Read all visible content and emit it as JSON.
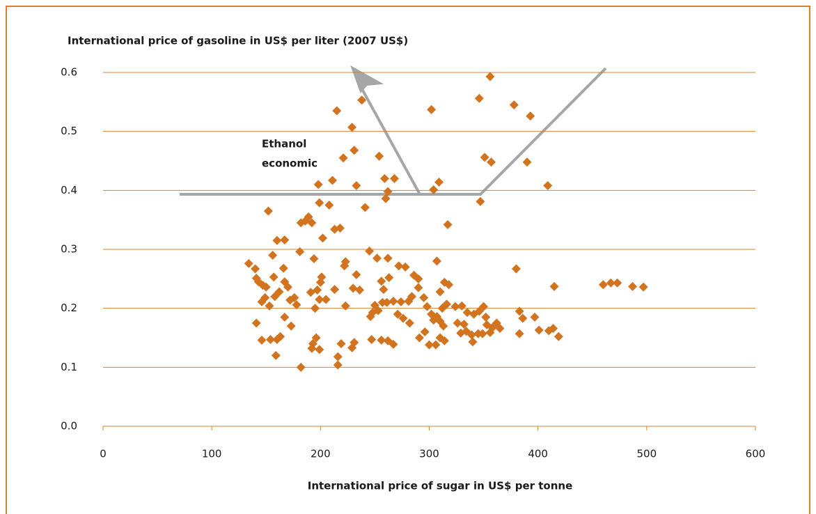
{
  "chart_data": {
    "type": "scatter",
    "y_axis_label": "International price of gasoline in US$ per liter (2007 US$)",
    "x_axis_label": "International price of sugar in US$ per tonne",
    "annotation_lines": [
      "Ethanol",
      "economic"
    ],
    "color": "#d2731f",
    "grid": true,
    "xlim": [
      0,
      600
    ],
    "xticks": [
      0,
      100,
      200,
      300,
      400,
      500,
      600
    ],
    "ylim": [
      0,
      0.6
    ],
    "yticks": [
      {
        "value": 0,
        "label": "0.0"
      },
      0.1,
      0.2,
      0.3,
      0.4,
      0.5,
      0.6
    ],
    "x": [
      215,
      238,
      229,
      231,
      221,
      233,
      211,
      198,
      208,
      199,
      152,
      254,
      259,
      262,
      260,
      268,
      241,
      302,
      346,
      356,
      378,
      393,
      351,
      357,
      390,
      409,
      309,
      304,
      347,
      317,
      218,
      213,
      202,
      182,
      186,
      189,
      192,
      160,
      167,
      156,
      181,
      194,
      307,
      380,
      134,
      140,
      141,
      143,
      147,
      150,
      146,
      149,
      153,
      158,
      157,
      162,
      166,
      167,
      170,
      172,
      176,
      178,
      173,
      167,
      191,
      197,
      199,
      195,
      200,
      201,
      205,
      213,
      223,
      222,
      233,
      236,
      230,
      223,
      245,
      252,
      256,
      258,
      250,
      253,
      262,
      263,
      267,
      261,
      257,
      246,
      248,
      272,
      278,
      286,
      290,
      284,
      274,
      281,
      295,
      290,
      298,
      302,
      304,
      307,
      310,
      312,
      314,
      318,
      316,
      310,
      313,
      324,
      330,
      332,
      335,
      341,
      346,
      350,
      352,
      353,
      358,
      362,
      365,
      339,
      334,
      326,
      329,
      345,
      349,
      356,
      340,
      310,
      314,
      306,
      300,
      291,
      296,
      276,
      282,
      271,
      256,
      247,
      262,
      267,
      229,
      231,
      219,
      216,
      216,
      182,
      193,
      196,
      199,
      192,
      146,
      154,
      160,
      163,
      159,
      141,
      383,
      386,
      397,
      401,
      383,
      410,
      414,
      419,
      415,
      460,
      467,
      473,
      487,
      497
    ],
    "values": [
      0.535,
      0.553,
      0.507,
      0.468,
      0.455,
      0.408,
      0.417,
      0.41,
      0.375,
      0.379,
      0.365,
      0.458,
      0.42,
      0.398,
      0.386,
      0.42,
      0.371,
      0.537,
      0.556,
      0.593,
      0.545,
      0.526,
      0.456,
      0.448,
      0.448,
      0.408,
      0.414,
      0.401,
      0.381,
      0.342,
      0.336,
      0.334,
      0.319,
      0.345,
      0.348,
      0.355,
      0.345,
      0.315,
      0.316,
      0.29,
      0.296,
      0.284,
      0.28,
      0.267,
      0.276,
      0.267,
      0.251,
      0.245,
      0.239,
      0.236,
      0.211,
      0.218,
      0.204,
      0.22,
      0.253,
      0.228,
      0.268,
      0.245,
      0.236,
      0.214,
      0.218,
      0.206,
      0.17,
      0.185,
      0.227,
      0.231,
      0.215,
      0.2,
      0.244,
      0.253,
      0.215,
      0.232,
      0.279,
      0.272,
      0.257,
      0.231,
      0.234,
      0.204,
      0.297,
      0.285,
      0.246,
      0.232,
      0.205,
      0.196,
      0.285,
      0.252,
      0.212,
      0.21,
      0.21,
      0.186,
      0.193,
      0.272,
      0.27,
      0.256,
      0.235,
      0.22,
      0.211,
      0.212,
      0.218,
      0.25,
      0.203,
      0.19,
      0.18,
      0.186,
      0.178,
      0.2,
      0.244,
      0.24,
      0.207,
      0.228,
      0.17,
      0.203,
      0.204,
      0.173,
      0.193,
      0.19,
      0.195,
      0.203,
      0.185,
      0.172,
      0.167,
      0.175,
      0.166,
      0.155,
      0.161,
      0.175,
      0.158,
      0.157,
      0.157,
      0.159,
      0.143,
      0.15,
      0.145,
      0.138,
      0.138,
      0.15,
      0.16,
      0.183,
      0.175,
      0.19,
      0.146,
      0.147,
      0.145,
      0.139,
      0.133,
      0.142,
      0.14,
      0.118,
      0.104,
      0.1,
      0.14,
      0.15,
      0.13,
      0.132,
      0.146,
      0.147,
      0.147,
      0.152,
      0.12,
      0.175,
      0.195,
      0.183,
      0.185,
      0.163,
      0.157,
      0.162,
      0.166,
      0.152,
      0.237,
      0.24,
      0.243,
      0.243,
      0.237,
      0.236
    ]
  }
}
